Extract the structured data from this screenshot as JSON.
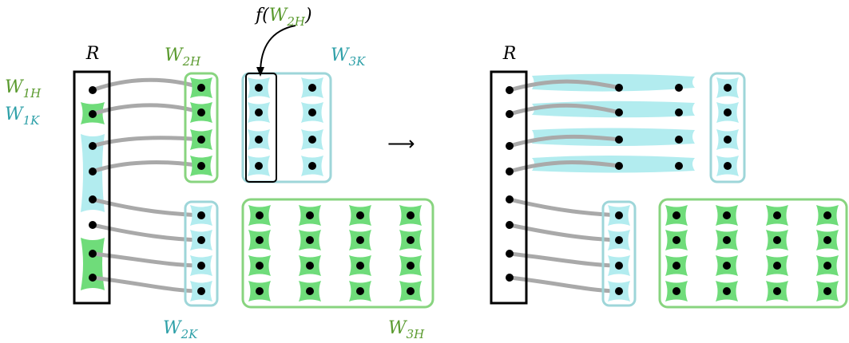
{
  "colors": {
    "green": "#6fdc7a",
    "cyan": "#b2ecef",
    "green_border": "#88d47f",
    "cyan_border": "#9ed6d9",
    "green_text": "#5a9a2e",
    "cyan_text": "#2ea0a8",
    "wire": "#a9a9a9",
    "dot": "#000000",
    "frame": "#000000"
  },
  "labels": {
    "R_left": "R",
    "R_right": "R",
    "w1h": {
      "base": "W",
      "sub": "1H"
    },
    "w1k": {
      "base": "W",
      "sub": "1K"
    },
    "w2h": {
      "base": "W",
      "sub": "2H"
    },
    "w3k": {
      "base": "W",
      "sub": "3K"
    },
    "w2k": {
      "base": "W",
      "sub": "2K"
    },
    "w3h": {
      "base": "W",
      "sub": "3H"
    },
    "f_open": "f(",
    "f_base": "W",
    "f_sub": "2H",
    "f_close": ")",
    "arrow": "⟶"
  }
}
